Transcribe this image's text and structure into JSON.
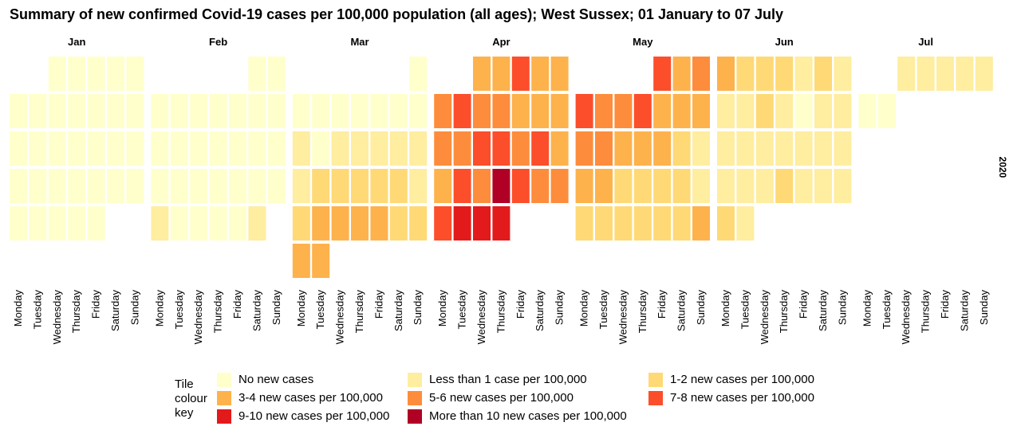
{
  "title": "Summary of new confirmed Covid-19 cases per 100,000 population (all ages); West Sussex; 01 January to 07 July",
  "chart_data": {
    "type": "heatmap",
    "title": "Summary of new confirmed Covid-19 cases per 100,000 population (all ages); West Sussex; 01 January to 07 July",
    "year_label": "2020",
    "days": [
      "Monday",
      "Tuesday",
      "Wednesday",
      "Thursday",
      "Friday",
      "Saturday",
      "Sunday"
    ],
    "legend_title": [
      "Tile",
      "colour",
      "key"
    ],
    "categories": [
      {
        "code": 0,
        "label": "No new cases",
        "color": "#FFFFCC"
      },
      {
        "code": 1,
        "label": "Less than 1 case per 100,000",
        "color": "#FFEDA0"
      },
      {
        "code": 2,
        "label": "1-2 new cases per 100,000",
        "color": "#FED976"
      },
      {
        "code": 3,
        "label": "3-4 new cases per 100,000",
        "color": "#FEB24C"
      },
      {
        "code": 4,
        "label": "5-6 new cases per 100,000",
        "color": "#FD8D3C"
      },
      {
        "code": 5,
        "label": "7-8 new cases per 100,000",
        "color": "#FC4E2A"
      },
      {
        "code": 6,
        "label": "9-10 new cases per 100,000",
        "color": "#E31A1C"
      },
      {
        "code": 7,
        "label": "More than 10 new cases per 100,000",
        "color": "#B10026"
      }
    ],
    "months": [
      {
        "name": "Jan",
        "weeks": [
          [
            null,
            null,
            0,
            0,
            0,
            0,
            0
          ],
          [
            0,
            0,
            0,
            0,
            0,
            0,
            0
          ],
          [
            0,
            0,
            0,
            0,
            0,
            0,
            0
          ],
          [
            0,
            0,
            0,
            0,
            0,
            0,
            0
          ],
          [
            0,
            0,
            0,
            0,
            0,
            null,
            null
          ]
        ]
      },
      {
        "name": "Feb",
        "weeks": [
          [
            null,
            null,
            null,
            null,
            null,
            0,
            0
          ],
          [
            0,
            0,
            0,
            0,
            0,
            0,
            0
          ],
          [
            0,
            0,
            0,
            0,
            0,
            0,
            0
          ],
          [
            0,
            0,
            0,
            0,
            0,
            0,
            0
          ],
          [
            1,
            0,
            0,
            0,
            0,
            1,
            null
          ]
        ]
      },
      {
        "name": "Mar",
        "weeks": [
          [
            null,
            null,
            null,
            null,
            null,
            null,
            0
          ],
          [
            0,
            0,
            0,
            0,
            0,
            0,
            0
          ],
          [
            1,
            0,
            1,
            1,
            1,
            1,
            1
          ],
          [
            1,
            2,
            2,
            2,
            2,
            2,
            1
          ],
          [
            2,
            3,
            3,
            3,
            3,
            2,
            2
          ],
          [
            3,
            3,
            null,
            null,
            null,
            null,
            null
          ]
        ]
      },
      {
        "name": "Apr",
        "weeks": [
          [
            null,
            null,
            3,
            3,
            5,
            3,
            3
          ],
          [
            4,
            5,
            4,
            4,
            3,
            3,
            3
          ],
          [
            4,
            4,
            5,
            5,
            4,
            5,
            3
          ],
          [
            3,
            5,
            4,
            7,
            5,
            4,
            4
          ],
          [
            5,
            6,
            6,
            6,
            null,
            null,
            null
          ]
        ]
      },
      {
        "name": "May",
        "weeks": [
          [
            null,
            null,
            null,
            null,
            5,
            3,
            4
          ],
          [
            5,
            4,
            4,
            5,
            3,
            3,
            3
          ],
          [
            4,
            4,
            3,
            3,
            3,
            2,
            1
          ],
          [
            3,
            3,
            2,
            2,
            2,
            2,
            1
          ],
          [
            2,
            2,
            2,
            2,
            2,
            2,
            3
          ]
        ]
      },
      {
        "name": "Jun",
        "weeks": [
          [
            3,
            2,
            2,
            2,
            1,
            2,
            1
          ],
          [
            1,
            1,
            2,
            1,
            0,
            1,
            1
          ],
          [
            1,
            1,
            1,
            1,
            1,
            1,
            1
          ],
          [
            1,
            1,
            1,
            2,
            1,
            1,
            1
          ],
          [
            2,
            1,
            null,
            null,
            null,
            null,
            null
          ]
        ]
      },
      {
        "name": "Jul",
        "weeks": [
          [
            null,
            null,
            1,
            1,
            1,
            1,
            1
          ],
          [
            0,
            0,
            null,
            null,
            null,
            null,
            null
          ]
        ]
      }
    ]
  }
}
